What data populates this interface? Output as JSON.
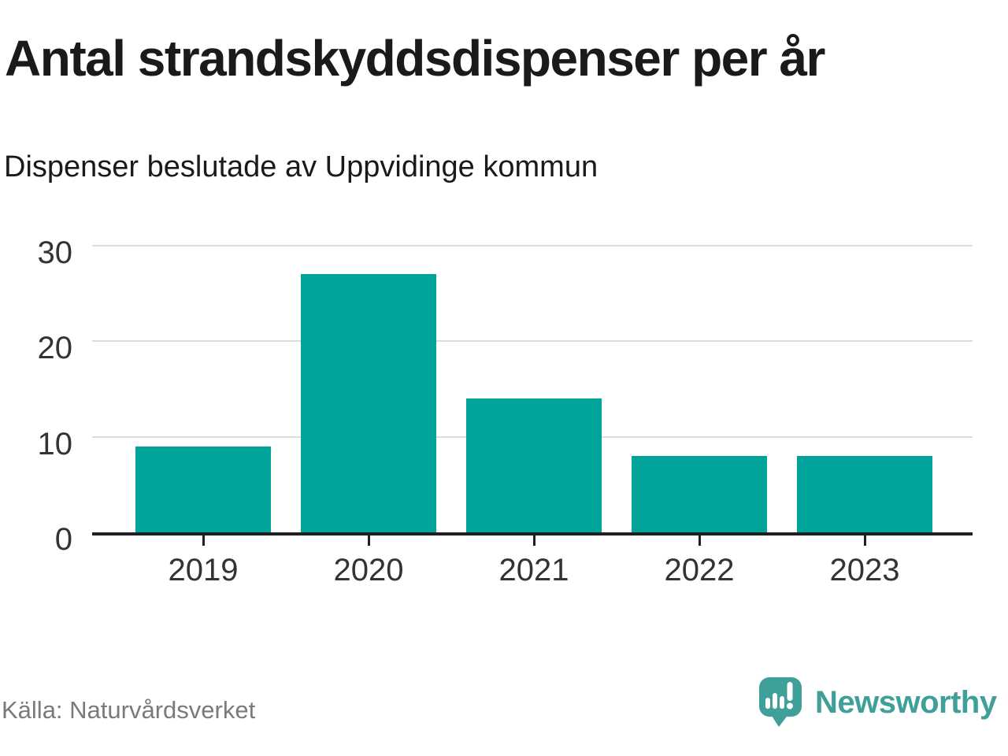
{
  "header": {
    "title": "Antal strandskyddsdispenser per år",
    "subtitle": "Dispenser beslutade av Uppvidinge kommun"
  },
  "footer": {
    "source": "Källa: Naturvårdsverket",
    "brand": {
      "name": "Newsworthy",
      "icon": "newsworthy-speech-bubble-bar-chart-icon"
    }
  },
  "colors": {
    "bar": "#00a49b",
    "brand": "#3f9f99",
    "gridline": "#dcdcdc",
    "axis": "#1f1f1f",
    "axis_label": "#333333",
    "title_text": "#1a1a1a",
    "source_text": "#7a7a7a"
  },
  "chart_data": {
    "type": "bar",
    "title": "Antal strandskyddsdispenser per år",
    "subtitle": "Dispenser beslutade av Uppvidinge kommun",
    "source": "Källa: Naturvårdsverket",
    "categories": [
      "2019",
      "2020",
      "2021",
      "2022",
      "2023"
    ],
    "values": [
      9,
      27,
      14,
      8,
      8
    ],
    "xlabel": "",
    "ylabel": "",
    "ylim": [
      0,
      30
    ],
    "yticks": [
      0,
      10,
      20,
      30
    ],
    "grid": true,
    "legend": false,
    "bar_color": "#00a49b"
  }
}
